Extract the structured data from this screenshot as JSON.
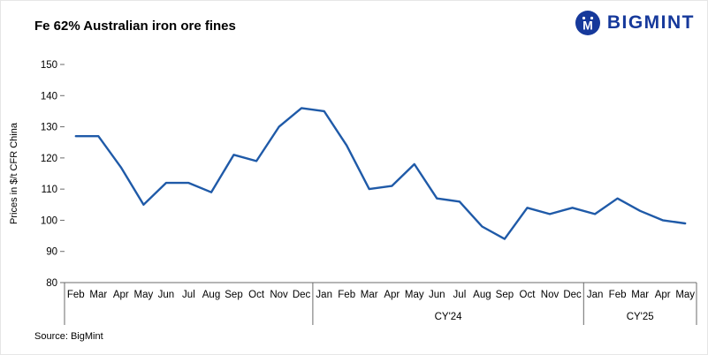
{
  "header": {
    "title": "Fe 62% Australian iron ore fines",
    "brand": "BIGMINT"
  },
  "footer": {
    "source": "Source: BigMint"
  },
  "colors": {
    "line": "#1f5aa8",
    "brand": "#16399b",
    "axis": "#6b6b6b"
  },
  "chart_data": {
    "type": "line",
    "title": "Fe 62% Australian iron ore fines",
    "xlabel": "",
    "ylabel": "Prices in $/t CFR China",
    "ylim": [
      80,
      150
    ],
    "yticks": [
      80,
      90,
      100,
      110,
      120,
      130,
      140,
      150
    ],
    "grid": false,
    "legend": "none",
    "groups": [
      {
        "label": "",
        "months": [
          "Feb",
          "Mar",
          "Apr",
          "May",
          "Jun",
          "Jul",
          "Aug",
          "Sep",
          "Oct",
          "Nov",
          "Dec"
        ]
      },
      {
        "label": "CY'24",
        "months": [
          "Jan",
          "Feb",
          "Mar",
          "Apr",
          "May",
          "Jun",
          "Jul",
          "Aug",
          "Sep",
          "Oct",
          "Nov",
          "Dec"
        ]
      },
      {
        "label": "CY'25",
        "months": [
          "Jan",
          "Feb",
          "Mar",
          "Apr",
          "May"
        ]
      }
    ],
    "series": [
      {
        "name": "Fe 62% Australian iron ore fines price",
        "values": [
          127,
          127,
          117,
          105,
          112,
          112,
          109,
          121,
          119,
          130,
          136,
          135,
          124,
          110,
          111,
          118,
          107,
          106,
          98,
          94,
          104,
          102,
          104,
          102,
          107,
          103,
          100,
          99
        ]
      }
    ]
  }
}
